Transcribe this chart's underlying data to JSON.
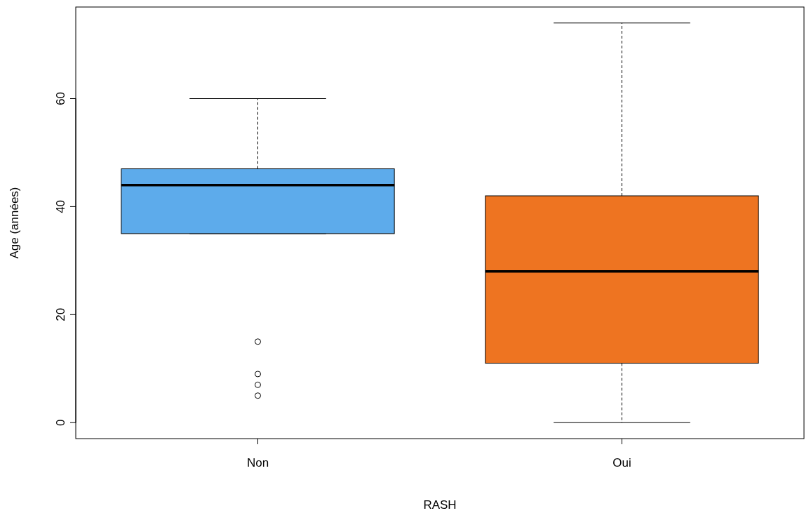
{
  "chart_data": {
    "type": "box",
    "xlabel": "RASH",
    "ylabel": "Age (années)",
    "categories": [
      "Non",
      "Oui"
    ],
    "colors": [
      "#5dabeb",
      "#ee7421"
    ],
    "boxes": [
      {
        "low": 35,
        "q1": 35,
        "median": 44,
        "q3": 47,
        "high": 60,
        "outliers": [
          15,
          9,
          7,
          5
        ]
      },
      {
        "low": 0,
        "q1": 11,
        "median": 28,
        "q3": 42,
        "high": 74
      }
    ],
    "ylim": [
      -2.96,
      76.96
    ],
    "yticks": [
      0,
      20,
      40,
      60
    ]
  }
}
